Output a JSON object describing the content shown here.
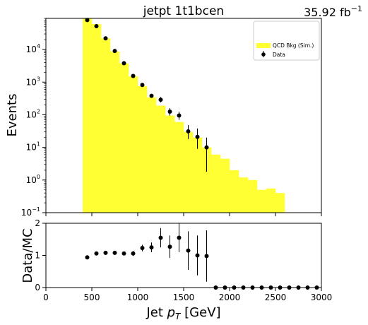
{
  "chart_data": [
    {
      "type": "bar",
      "panel": "main",
      "title": "jetpt  1t1bcen",
      "lumi_label": "35.92 fb",
      "lumi_sup": "−1",
      "ylabel": "Events",
      "yscale": "log",
      "ylim": [
        0.1,
        90000
      ],
      "xlim": [
        0,
        3000
      ],
      "yticks": [
        {
          "value": 0.1,
          "base": "10",
          "exp": "−1"
        },
        {
          "value": 1,
          "base": "10",
          "exp": "0"
        },
        {
          "value": 10,
          "base": "10",
          "exp": "1"
        },
        {
          "value": 100,
          "base": "10",
          "exp": "2"
        },
        {
          "value": 1000,
          "base": "10",
          "exp": "3"
        },
        {
          "value": 10000,
          "base": "10",
          "exp": "4"
        }
      ],
      "legend": {
        "placement": "top-right",
        "entries": [
          {
            "label": "QCD Bkg (Sim.)",
            "kind": "fill",
            "color": "#ffff33"
          },
          {
            "label": "Data",
            "kind": "marker",
            "color": "#000000"
          }
        ]
      },
      "mc_series": {
        "name": "QCD Bkg (Sim.)",
        "color": "#ffff33",
        "bin_width": 100,
        "bin_low": [
          400,
          500,
          600,
          700,
          800,
          900,
          1000,
          1100,
          1200,
          1300,
          1400,
          1500,
          1600,
          1700,
          1800,
          1900,
          2000,
          2100,
          2200,
          2300,
          2400,
          2500
        ],
        "values": [
          90000,
          60000,
          22000,
          8700,
          3700,
          1500,
          750,
          340,
          190,
          95,
          60,
          30,
          20,
          10,
          6,
          4.5,
          2,
          1.2,
          1,
          0.5,
          0.55,
          0.4
        ]
      },
      "data_series": {
        "name": "Data",
        "x": [
          450,
          550,
          650,
          750,
          850,
          950,
          1050,
          1150,
          1250,
          1350,
          1450,
          1550,
          1650,
          1750
        ],
        "y": [
          80000,
          52000,
          22000,
          9000,
          3800,
          1550,
          820,
          380,
          290,
          125,
          95,
          31,
          21,
          10
        ],
        "y_low": [
          78000,
          50000,
          21000,
          8500,
          3600,
          1450,
          760,
          340,
          240,
          95,
          70,
          18,
          9,
          1.8
        ],
        "y_high": [
          82000,
          54000,
          23000,
          9500,
          4000,
          1650,
          880,
          420,
          350,
          160,
          125,
          48,
          38,
          20
        ]
      }
    },
    {
      "type": "scatter",
      "panel": "ratio",
      "ylabel": "Data/MC",
      "xlabel": "Jet ",
      "xlabel_math": "p",
      "xlabel_sub": "T",
      "xlabel_unit": " [GeV]",
      "xlim": [
        0,
        3000
      ],
      "ylim": [
        0,
        2
      ],
      "xticks": [
        0,
        500,
        1000,
        1500,
        2000,
        2500,
        3000
      ],
      "yticks": [
        0,
        1,
        2
      ],
      "x": [
        450,
        550,
        650,
        750,
        850,
        950,
        1050,
        1150,
        1250,
        1350,
        1450,
        1550,
        1650,
        1750,
        1850,
        1950,
        2050,
        2150,
        2250,
        2350,
        2450,
        2550,
        2650,
        2750,
        2850,
        2950
      ],
      "y": [
        0.94,
        1.06,
        1.08,
        1.08,
        1.06,
        1.06,
        1.23,
        1.25,
        1.55,
        1.27,
        1.55,
        1.15,
        1.0,
        0.98,
        0,
        0,
        0,
        0,
        0,
        0,
        0,
        0,
        0,
        0,
        0,
        0
      ],
      "y_err": [
        0,
        0.02,
        0.03,
        0.03,
        0.05,
        0.08,
        0.1,
        0.15,
        0.3,
        0.35,
        0.45,
        0.6,
        0.62,
        0.8,
        0,
        0,
        0,
        0,
        0,
        0,
        0,
        0,
        0,
        0,
        0,
        0
      ]
    }
  ]
}
